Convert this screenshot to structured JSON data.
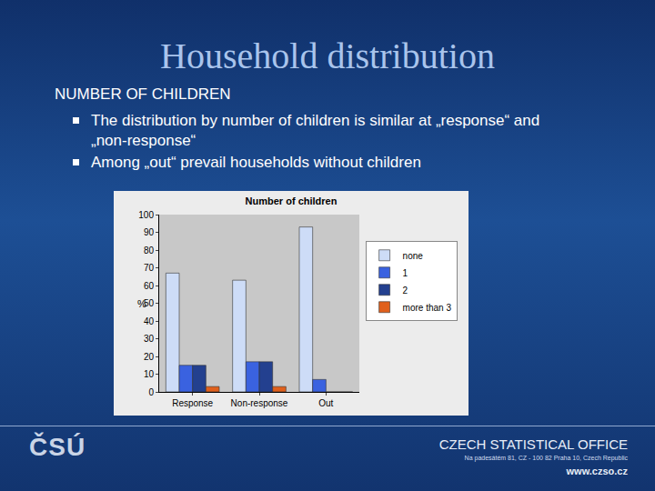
{
  "slide": {
    "title": "Household distribution",
    "section": "NUMBER OF CHILDREN",
    "bullets": [
      "The distribution by number of children is similar at „response“ and „non-response“",
      "Among „out“ prevail households without children"
    ],
    "footer": {
      "logo": "ČSÚ",
      "office": "CZECH STATISTICAL OFFICE",
      "address": "Na padesátém 81, CZ - 100 82 Praha 10, Czech Republic",
      "web": "www.czso.cz"
    }
  },
  "chart_data": {
    "type": "bar",
    "title": "Number of children",
    "y_label": "%",
    "categories": [
      "Response",
      "Non-response",
      "Out"
    ],
    "series": [
      {
        "name": "none",
        "color": "#cddcf7",
        "values": [
          67,
          63,
          93
        ]
      },
      {
        "name": "1",
        "color": "#3a62e0",
        "values": [
          15,
          17,
          7
        ]
      },
      {
        "name": "2",
        "color": "#23408f",
        "values": [
          15,
          17,
          0
        ]
      },
      {
        "name": "more than 3",
        "color": "#e0601c",
        "values": [
          3,
          3,
          0
        ]
      }
    ],
    "ylim": [
      0,
      100
    ],
    "yticks": [
      0,
      10,
      20,
      30,
      40,
      50,
      60,
      70,
      80,
      90,
      100
    ],
    "grid": false,
    "legend": "right"
  }
}
